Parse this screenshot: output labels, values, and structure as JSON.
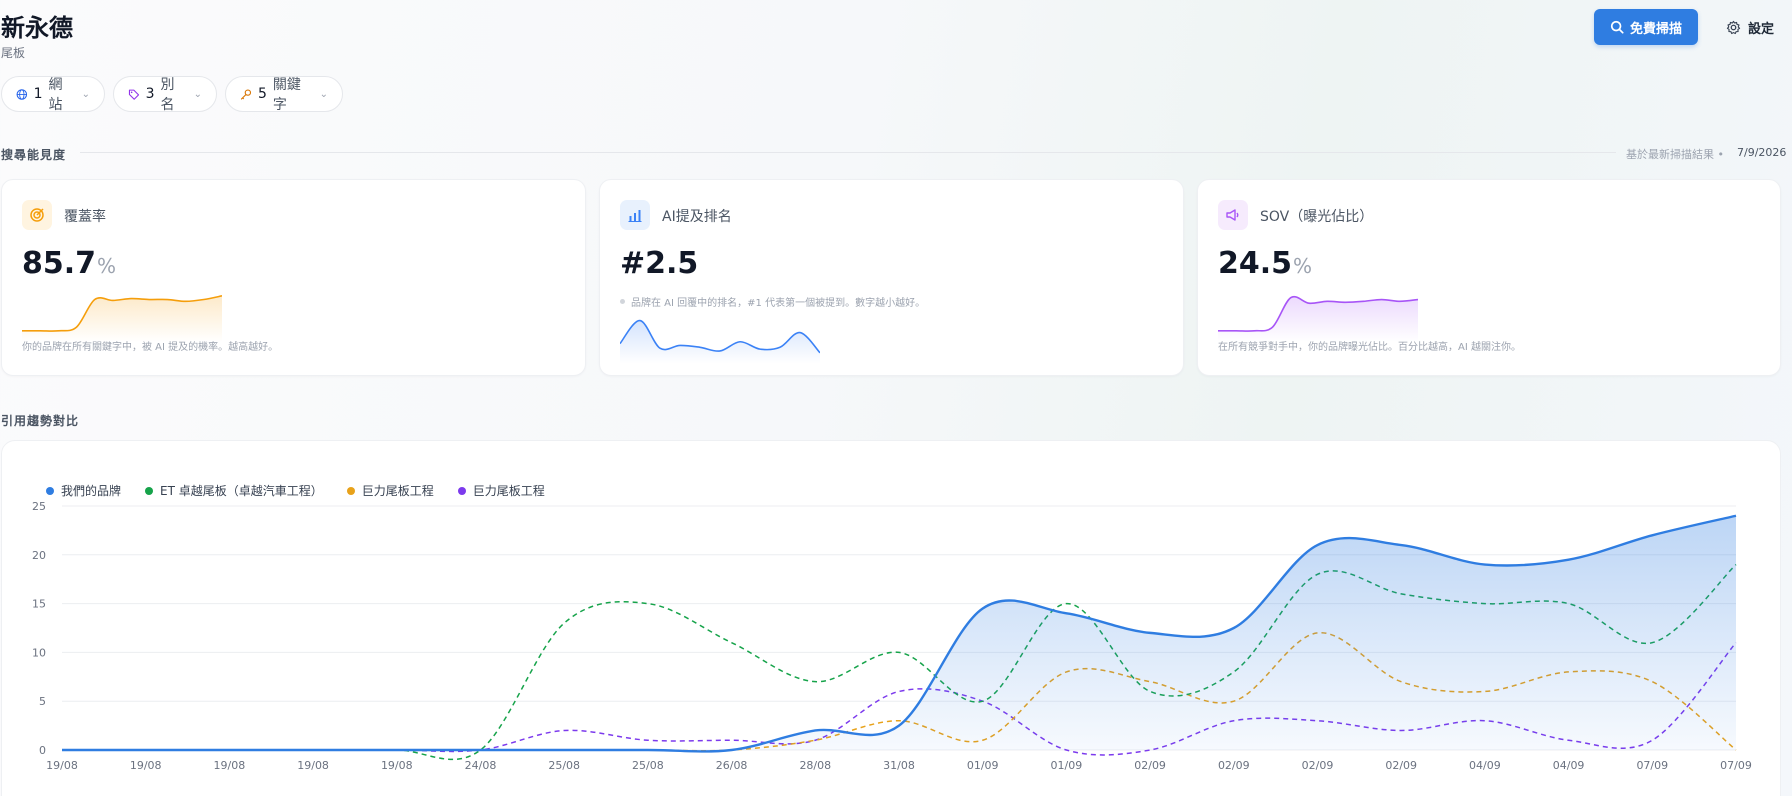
{
  "header": {
    "brand": "新永德",
    "category": "尾板",
    "scan_button": "免費掃描",
    "settings_button": "設定"
  },
  "filters": [
    {
      "count": "1",
      "label": "網站",
      "icon": "globe-icon",
      "color": "#2563eb"
    },
    {
      "count": "3",
      "label": "別名",
      "icon": "tag-icon",
      "color": "#9333ea"
    },
    {
      "count": "5",
      "label": "關鍵字",
      "icon": "key-icon",
      "color": "#d97706"
    }
  ],
  "visibility": {
    "section_title": "搜尋能見度",
    "based_on": "基於最新掃描結果 •",
    "date": "7/9/2026",
    "cards": [
      {
        "title": "覆蓋率",
        "value": "85.7",
        "unit": "%",
        "desc": "你的品牌在所有關鍵字中，被 AI 提及的機率。越高越好。",
        "icon": "target-icon",
        "color": "#f59e0b",
        "spark": [
          10,
          10,
          10,
          14,
          44,
          43,
          45,
          44,
          44,
          42,
          44,
          48
        ]
      },
      {
        "title": "AI提及排名",
        "value": "#2.5",
        "unit": "",
        "note": "品牌在 AI 回覆中的排名，#1 代表第一個被提到。數字越小越好。",
        "icon": "bar-chart-icon",
        "color": "#3b82f6",
        "spark": [
          20,
          45,
          15,
          18,
          16,
          12,
          22,
          14,
          16,
          32,
          10
        ]
      },
      {
        "title": "SOV（曝光佔比）",
        "value": "24.5",
        "unit": "%",
        "desc": "在所有競爭對手中，你的品牌曝光佔比。百分比越高，AI 越關注你。",
        "icon": "megaphone-icon",
        "color": "#a855f7",
        "spark": [
          10,
          10,
          10,
          14,
          46,
          40,
          42,
          41,
          42,
          44,
          42,
          44
        ]
      }
    ]
  },
  "trend": {
    "section_title": "引用趨勢對比"
  },
  "chart_data": {
    "type": "line",
    "x": [
      "19/08",
      "19/08",
      "19/08",
      "19/08",
      "19/08",
      "24/08",
      "25/08",
      "25/08",
      "26/08",
      "28/08",
      "31/08",
      "01/09",
      "01/09",
      "02/09",
      "02/09",
      "02/09",
      "02/09",
      "04/09",
      "04/09",
      "07/09",
      "07/09"
    ],
    "ylim": [
      0,
      25
    ],
    "yticks": [
      0,
      5,
      10,
      15,
      20,
      25
    ],
    "grid": true,
    "legend": "top-left",
    "series": [
      {
        "name": "我們的品牌",
        "color": "#2f7de1",
        "dashed": false,
        "fill": true,
        "values": [
          0,
          0,
          0,
          0,
          0,
          0,
          0,
          0,
          0,
          2,
          2.5,
          14.5,
          14,
          12,
          12.5,
          21,
          21,
          19,
          19.5,
          22,
          24
        ]
      },
      {
        "name": "ET 卓越尾板（卓越汽車工程）",
        "color": "#16a34a",
        "dashed": true,
        "fill": false,
        "values": [
          0,
          0,
          0,
          0,
          0,
          0,
          13,
          15,
          11,
          7,
          10,
          5,
          15,
          6,
          8,
          18,
          16,
          15,
          15,
          11,
          19
        ]
      },
      {
        "name": "巨力尾板工程",
        "color": "#e8a21a",
        "dashed": true,
        "fill": false,
        "values": [
          0,
          0,
          0,
          0,
          0,
          0,
          0,
          0,
          0,
          1,
          3,
          1,
          8,
          7,
          5,
          12,
          7,
          6,
          8,
          7,
          0
        ]
      },
      {
        "name": "巨力尾板工程",
        "color": "#7c3aed",
        "dashed": true,
        "fill": false,
        "values": [
          0,
          0,
          0,
          0,
          0,
          0,
          2,
          1,
          1,
          1,
          6,
          5,
          0,
          0,
          3,
          3,
          2,
          3,
          1,
          1,
          11
        ]
      }
    ]
  }
}
